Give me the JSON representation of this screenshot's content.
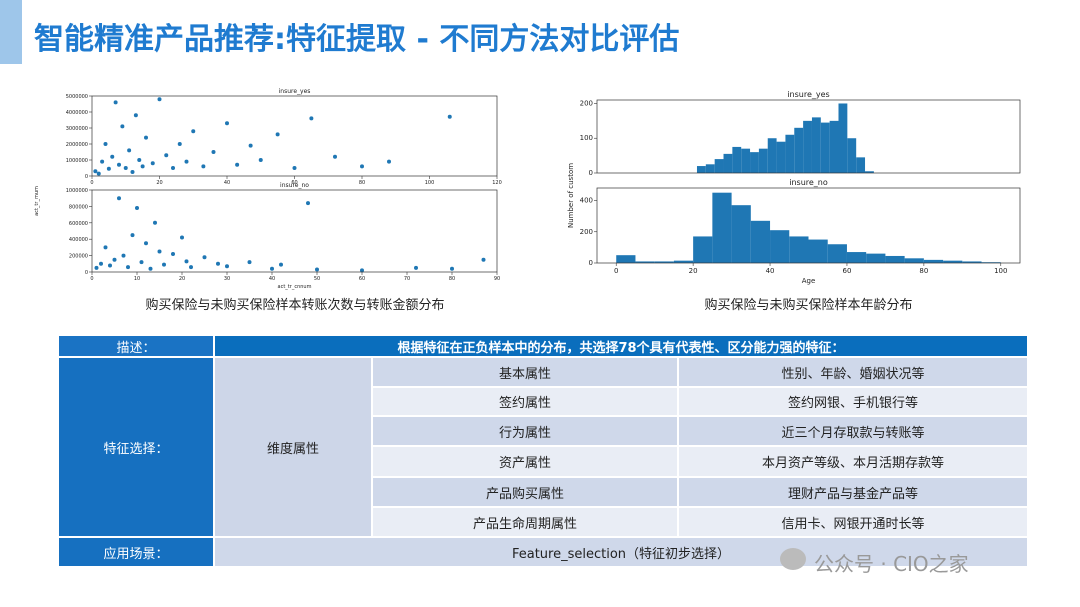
{
  "header": {
    "title": "智能精准产品推荐:特征提取 - 不同方法对比评估"
  },
  "captions": [
    "购买保险与未购买保险样本转账次数与转账金额分布",
    "购买保险与未购买保险样本年龄分布"
  ],
  "chart_data": [
    {
      "type": "scatter",
      "title": "insure_yes",
      "color": "#1f77b4",
      "x": [
        1,
        2,
        3,
        4,
        5,
        6,
        7,
        8,
        9,
        10,
        11,
        12,
        13,
        14,
        15,
        16,
        18,
        20,
        22,
        24,
        26,
        28,
        30,
        33,
        36,
        40,
        43,
        47,
        50,
        55,
        60,
        65,
        72,
        80,
        88,
        106
      ],
      "values": [
        300000,
        150000,
        900000,
        2000000,
        450000,
        1200000,
        4600000,
        700000,
        3100000,
        500000,
        1600000,
        250000,
        3800000,
        1000000,
        600000,
        2400000,
        800000,
        4800000,
        1300000,
        500000,
        2000000,
        900000,
        2800000,
        600000,
        1500000,
        3300000,
        700000,
        1900000,
        1000000,
        2600000,
        500000,
        3600000,
        1200000,
        600000,
        900000,
        3700000
      ],
      "xlim": [
        0,
        120
      ],
      "xticks": [
        0,
        20,
        40,
        60,
        80,
        100,
        120
      ],
      "ylim": [
        0,
        5000000
      ],
      "yticks": [
        0,
        1000000,
        2000000,
        3000000,
        4000000,
        5000000
      ]
    },
    {
      "type": "scatter",
      "title": "insure_no",
      "color": "#1f77b4",
      "xlabel": "act_tr_cnnum",
      "ylabel": "act_tr_mum",
      "x": [
        1,
        2,
        3,
        4,
        5,
        6,
        7,
        8,
        9,
        10,
        11,
        12,
        13,
        14,
        15,
        16,
        18,
        20,
        21,
        22,
        25,
        28,
        30,
        35,
        40,
        42,
        48,
        50,
        60,
        72,
        80,
        87
      ],
      "values": [
        50000,
        100000,
        300000,
        80000,
        150000,
        900000,
        200000,
        60000,
        450000,
        780000,
        120000,
        350000,
        40000,
        600000,
        250000,
        90000,
        220000,
        420000,
        130000,
        60000,
        180000,
        100000,
        70000,
        120000,
        40000,
        90000,
        840000,
        30000,
        20000,
        50000,
        40000,
        150000
      ],
      "xlim": [
        0,
        90
      ],
      "xticks": [
        0,
        10,
        20,
        30,
        40,
        50,
        60,
        70,
        80,
        90
      ],
      "ylim": [
        0,
        1000000
      ],
      "yticks": [
        0,
        200000,
        400000,
        600000,
        800000,
        1000000
      ]
    },
    {
      "type": "histogram",
      "title": "insure_yes",
      "color": "#1f77b4",
      "bins": [
        21,
        23.3,
        25.6,
        27.9,
        30.2,
        32.5,
        34.8,
        37.1,
        39.4,
        41.7,
        44,
        46.3,
        48.6,
        50.9,
        53.2,
        55.5,
        57.8,
        60.1,
        62.4,
        64.7,
        67
      ],
      "values": [
        20,
        25,
        40,
        55,
        75,
        70,
        60,
        70,
        100,
        90,
        110,
        130,
        150,
        160,
        145,
        150,
        200,
        100,
        45,
        5
      ],
      "xlim": [
        -5,
        105
      ],
      "ylim": [
        0,
        210
      ],
      "yticks": [
        0,
        100,
        200
      ]
    },
    {
      "type": "histogram",
      "title": "insure_no",
      "color": "#1f77b4",
      "xlabel": "Age",
      "ylabel": "Number of custom",
      "bins": [
        0,
        5,
        10,
        15,
        20,
        25,
        30,
        35,
        40,
        45,
        50,
        55,
        60,
        65,
        70,
        75,
        80,
        85,
        90,
        95,
        100
      ],
      "values": [
        50,
        10,
        10,
        15,
        170,
        450,
        370,
        270,
        210,
        170,
        150,
        120,
        70,
        60,
        45,
        30,
        20,
        15,
        10,
        5
      ],
      "xlim": [
        -5,
        105
      ],
      "xticks": [
        0,
        20,
        40,
        60,
        80,
        100
      ],
      "ylim": [
        0,
        480
      ],
      "yticks": [
        0,
        200,
        400
      ]
    }
  ],
  "table": {
    "header": [
      "描述：",
      "根据特征在正负样本中的分布，共选择78个具有代表性、区分能力强的特征："
    ],
    "group": "特征选择：",
    "subgroup": "维度属性",
    "rows": [
      [
        "基本属性",
        "性别、年龄、婚姻状况等"
      ],
      [
        "签约属性",
        "签约网银、手机银行等"
      ],
      [
        "行为属性",
        "近三个月存取款与转账等"
      ],
      [
        "资产属性",
        "本月资产等级、本月活期存款等"
      ],
      [
        "产品购买属性",
        "理财产品与基金产品等"
      ],
      [
        "产品生命周期属性",
        "信用卡、网银开通时长等"
      ]
    ],
    "footer": [
      "应用场景：",
      "Feature_selection（特征初步选择）"
    ]
  },
  "watermark": "公众号 · CIO之家"
}
